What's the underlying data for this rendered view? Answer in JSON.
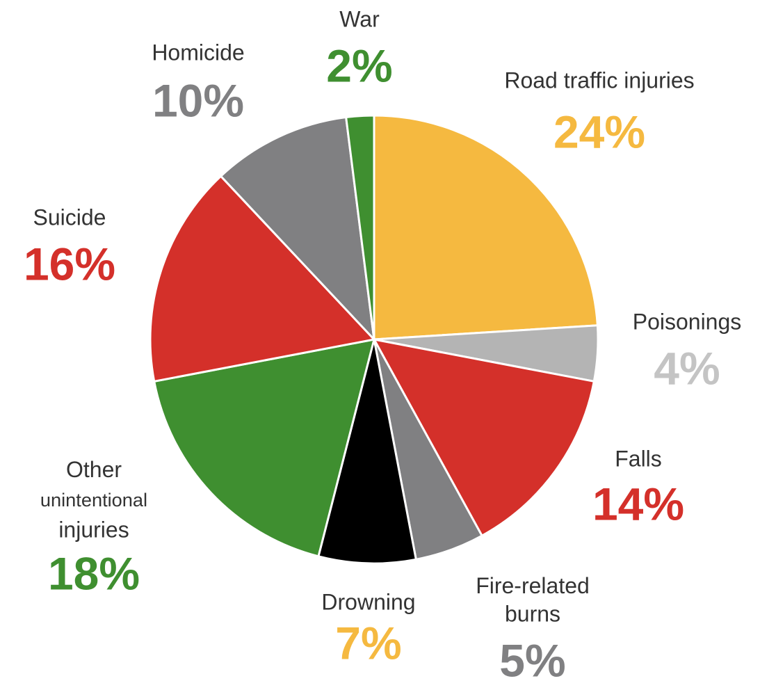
{
  "chart_data": {
    "type": "pie",
    "categories": [
      "Road traffic injuries",
      "Poisonings",
      "Falls",
      "Fire-related burns",
      "Drowning",
      "Other unintentional injuries",
      "Suicide",
      "Homicide",
      "War"
    ],
    "values": [
      24,
      4,
      14,
      5,
      7,
      18,
      16,
      10,
      2
    ],
    "value_labels": [
      "24%",
      "4%",
      "14%",
      "5%",
      "7%",
      "18%",
      "16%",
      "10%",
      "2%"
    ],
    "colors": [
      "#f5b940",
      "#b4b4b4",
      "#d4302a",
      "#808082",
      "#000000",
      "#3f8f30",
      "#d4302a",
      "#808082",
      "#3f8f30"
    ],
    "value_label_colors": [
      "#f5b940",
      "#c4c4c4",
      "#d4302a",
      "#808082",
      "#f5b940",
      "#3f8f30",
      "#d4302a",
      "#808082",
      "#3f8f30"
    ],
    "start_angle": 0,
    "direction": "clockwise"
  }
}
